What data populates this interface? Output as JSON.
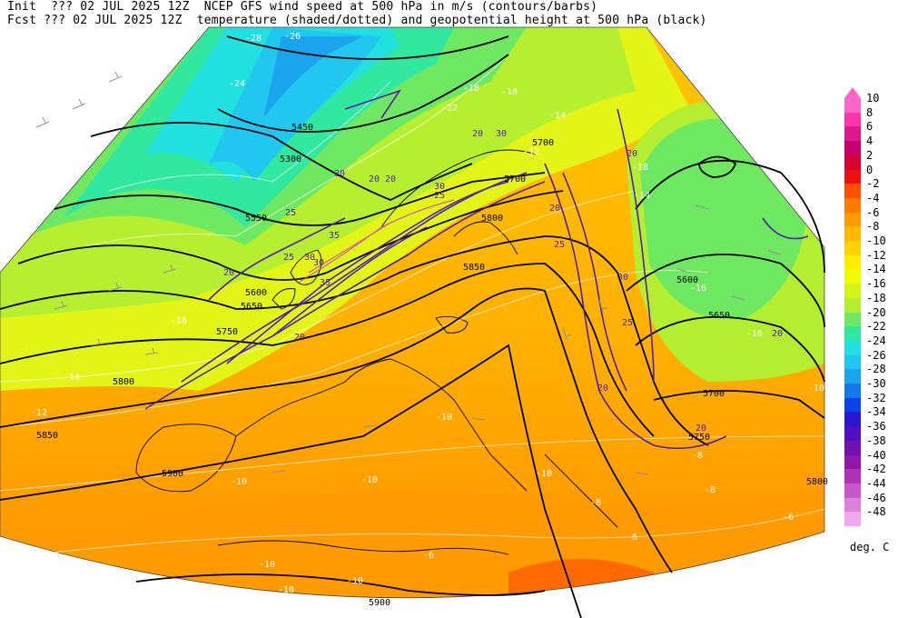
{
  "header": {
    "line1": "Init  ??? 02 JUL 2025 12Z  NCEP GFS wind speed at 500 hPa in m/s (contours/barbs)",
    "line2": "Fcst ??? 02 JUL 2025 12Z  temperature (shaded/dotted) and geopotential height at 500 hPa (black)"
  },
  "colorbar": {
    "unit": "deg. C",
    "levels": [
      "10",
      "8",
      "6",
      "4",
      "2",
      "0",
      "-2",
      "-4",
      "-6",
      "-8",
      "-10",
      "-12",
      "-14",
      "-16",
      "-18",
      "-20",
      "-22",
      "-24",
      "-26",
      "-28",
      "-30",
      "-32",
      "-34",
      "-36",
      "-38",
      "-40",
      "-42",
      "-44",
      "-46",
      "-48"
    ],
    "colors": [
      "#ff66c8",
      "#ff33aa",
      "#e01890",
      "#c8006e",
      "#d80030",
      "#f01010",
      "#ff5000",
      "#ff7a00",
      "#ff9a00",
      "#ffb800",
      "#ffd200",
      "#ffee00",
      "#f0ff00",
      "#d4f51a",
      "#b4ee30",
      "#6ee860",
      "#30e8a0",
      "#20e0e0",
      "#20c8f0",
      "#1aa4ee",
      "#1478e6",
      "#0a44e6",
      "#2818d0",
      "#5010c0",
      "#7010b0",
      "#9018a8",
      "#b030b8",
      "#c858c8",
      "#dc80dc",
      "#f0a8f0"
    ]
  },
  "map_labels": {
    "heights": [
      "5450",
      "5300",
      "5550",
      "5600",
      "5650",
      "5700",
      "5750",
      "5800",
      "5850",
      "5900",
      "5700",
      "5850",
      "5800",
      "5600",
      "5650",
      "5700",
      "5750",
      "5800",
      "5900"
    ],
    "wind": [
      "20",
      "20",
      "20",
      "25",
      "30",
      "35",
      "30",
      "20",
      "30",
      "25",
      "30",
      "35",
      "20",
      "25",
      "20",
      "20",
      "30",
      "25",
      "20",
      "20",
      "20",
      "20",
      "25"
    ],
    "temperature": [
      "-26",
      "-28",
      "-24",
      "-22",
      "-18",
      "-16",
      "-14",
      "-14",
      "-12",
      "-10",
      "-10",
      "-10",
      "-10",
      "-10",
      "-10",
      "-10",
      "-8",
      "-8",
      "-6",
      "-6",
      "-6",
      "-8",
      "-14",
      "-18",
      "-16",
      "-16",
      "-18",
      "-12",
      "-10"
    ]
  }
}
